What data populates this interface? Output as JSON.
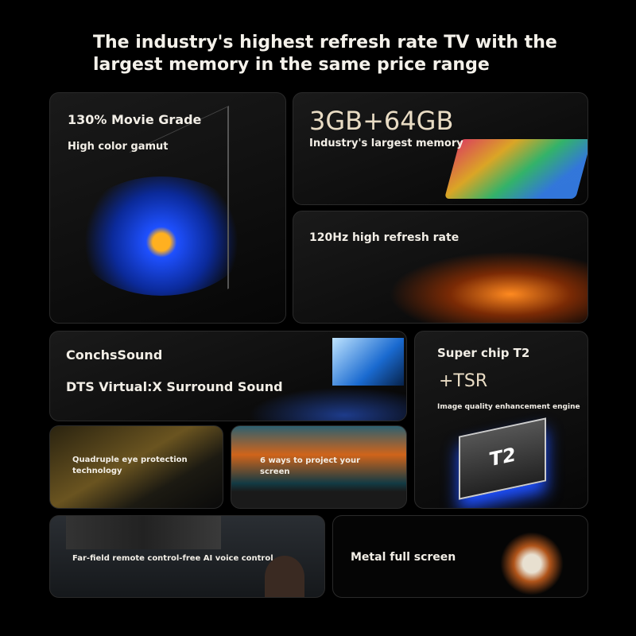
{
  "title": "The industry's highest refresh rate TV with the largest memory in the same price range",
  "cards": {
    "gamut": {
      "heading": "130% Movie Grade",
      "sub": "High color gamut"
    },
    "memory": {
      "heading": "3GB+64GB",
      "sub": "Industry's largest memory"
    },
    "refresh": {
      "heading": "120Hz high refresh rate"
    },
    "sound": {
      "heading": "ConchsSound",
      "sub": "DTS Virtual:X Surround Sound"
    },
    "chip": {
      "heading": "Super chip T2",
      "tsr": "+TSR",
      "sub": "Image quality enhancement engine",
      "chip_label": "T2"
    },
    "eye": {
      "heading": "Quadruple eye protection technology"
    },
    "project": {
      "heading": "6 ways to project your screen"
    },
    "voice": {
      "heading": "Far-field remote control-free AI voice control"
    },
    "metal": {
      "heading": "Metal full screen"
    }
  },
  "colors": {
    "accent_blue": "#2a6cff",
    "accent_orange": "#ff7a1a",
    "memory_text": "#e9dcc4"
  }
}
